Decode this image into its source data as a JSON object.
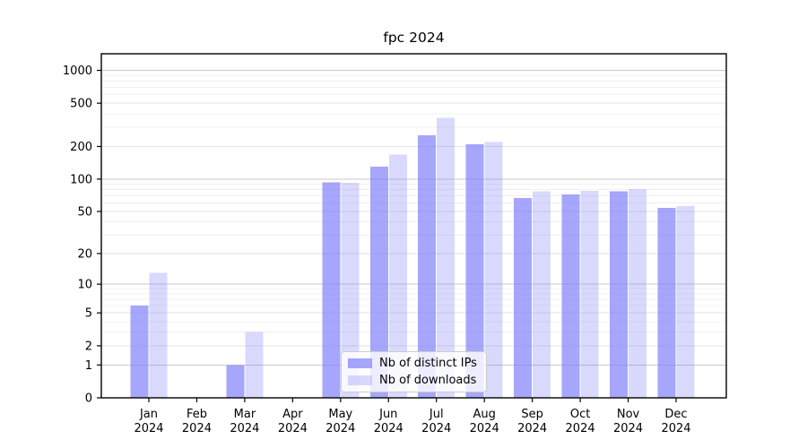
{
  "figure": {
    "background": "#ffffff",
    "plot_background": "#ffffff",
    "axis_color": "#000000",
    "tick_label_color": "#000000"
  },
  "chart_data": {
    "type": "bar",
    "title": "fpc 2024",
    "xlabel": "",
    "ylabel": "",
    "categories": [
      "Jan 2024",
      "Feb 2024",
      "Mar 2024",
      "Apr 2024",
      "May 2024",
      "Jun 2024",
      "Jul 2024",
      "Aug 2024",
      "Sep 2024",
      "Oct 2024",
      "Nov 2024",
      "Dec 2024"
    ],
    "x_tick_line1": [
      "Jan",
      "Feb",
      "Mar",
      "Apr",
      "May",
      "Jun",
      "Jul",
      "Aug",
      "Sep",
      "Oct",
      "Nov",
      "Dec"
    ],
    "x_tick_line2": "2024",
    "series": [
      {
        "name": "Nb of distinct IPs",
        "values": [
          6,
          0,
          1,
          0,
          93,
          130,
          253,
          210,
          67,
          72,
          77,
          54
        ],
        "fill": "rgba(132,132,252,0.72)",
        "approx_hex_on_white": "#aaaaf9"
      },
      {
        "name": "Nb of downloads",
        "values": [
          13,
          0,
          3,
          0,
          92,
          168,
          368,
          220,
          77,
          78,
          81,
          56
        ],
        "fill": "rgba(132,132,252,0.31)",
        "approx_hex_on_white": "#dbdbfa"
      }
    ],
    "yscale": "log1p",
    "ylim": [
      0,
      1400
    ],
    "y_ticks": [
      1000,
      500,
      200,
      100,
      50,
      20,
      10,
      5,
      2,
      1,
      0
    ],
    "grid": {
      "enabled": true,
      "major_values": [
        1,
        10,
        100,
        1000
      ],
      "mid_values": [
        2,
        5,
        20,
        50,
        200,
        500
      ],
      "minor_values": [
        3,
        4,
        6,
        7,
        8,
        9,
        30,
        40,
        60,
        70,
        80,
        90,
        300,
        400,
        600,
        700,
        800,
        900
      ],
      "major_color": "#c8c8c8",
      "mid_color": "#e2e2e2",
      "minor_color": "#f0f0f0"
    },
    "legend": {
      "position": "lower-center-inside",
      "background": "rgba(255,255,255,0.8)",
      "border_color": "#cccccc"
    }
  }
}
